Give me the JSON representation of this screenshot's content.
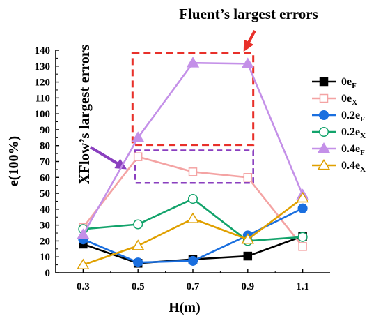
{
  "chart_data": {
    "type": "line",
    "title": "",
    "xlabel": "H(m)",
    "ylabel": "e(100%)",
    "x": [
      0.3,
      0.5,
      0.7,
      0.9,
      1.1
    ],
    "x_tick_labels": [
      "0.3",
      "0.5",
      "0.7",
      "0.9",
      "1.1"
    ],
    "xlim": [
      0.2,
      1.2
    ],
    "ylim": [
      0,
      140
    ],
    "y_ticks": [
      0,
      10,
      20,
      30,
      40,
      50,
      60,
      70,
      80,
      90,
      100,
      110,
      120,
      130,
      140
    ],
    "grid": false,
    "legend_position": "right",
    "series": [
      {
        "name_base": "0e",
        "name_sub": "F",
        "color": "#000000",
        "marker": "square",
        "filled": true,
        "values": [
          18,
          6,
          8.5,
          10.5,
          23
        ]
      },
      {
        "name_base": "0e",
        "name_sub": "X",
        "color": "#f4a3a3",
        "marker": "square",
        "filled": false,
        "values": [
          28.5,
          73,
          63.5,
          60,
          16.5
        ]
      },
      {
        "name_base": "0.2e",
        "name_sub": "F",
        "color": "#1a6fdf",
        "marker": "circle",
        "filled": true,
        "values": [
          21,
          6.5,
          7.5,
          23.5,
          40.5
        ]
      },
      {
        "name_base": "0.2e",
        "name_sub": "X",
        "color": "#12a36b",
        "marker": "circle",
        "filled": false,
        "values": [
          27.5,
          30.5,
          46.5,
          20,
          22.5
        ]
      },
      {
        "name_base": "0.4e",
        "name_sub": "F",
        "color": "#c490e8",
        "marker": "triangle",
        "filled": true,
        "values": [
          24,
          85,
          132,
          131.5,
          49
        ]
      },
      {
        "name_base": "0.4e",
        "name_sub": "X",
        "color": "#e0a000",
        "marker": "triangle",
        "filled": false,
        "values": [
          5,
          17,
          34,
          21,
          47
        ]
      }
    ],
    "annotations": [
      {
        "text": "Fluent’s largest errors",
        "box_color": "#e8302a",
        "arrow_color": "#e8302a",
        "box_x": [
          0.48,
          0.92
        ],
        "box_y": [
          80.5,
          138
        ]
      },
      {
        "text": "XFlow’s largest errors",
        "box_color": "#8a3fbf",
        "arrow_color": "#8a3fbf",
        "box_x": [
          0.49,
          0.92
        ],
        "box_y": [
          56.5,
          77
        ]
      }
    ]
  }
}
